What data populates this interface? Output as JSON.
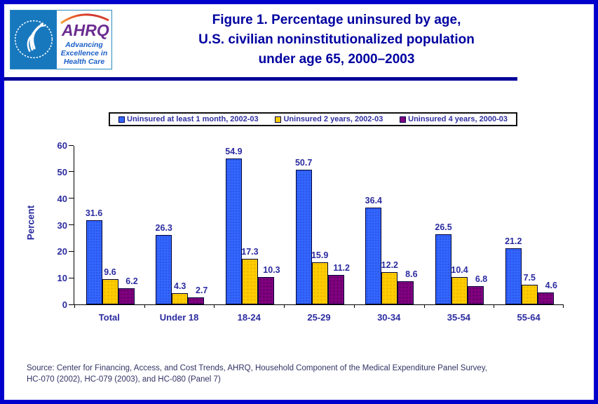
{
  "page": {
    "border_color": "#0000CC",
    "background": "#FFFFFF"
  },
  "header": {
    "logo": {
      "hhs_seal": "hhs-eagle-seal",
      "ahrq_text": "AHRQ",
      "tagline_lines": [
        "Advancing",
        "Excellence in",
        "Health Care"
      ],
      "ahrq_color": "#6B2C91",
      "tagline_color": "#1A5FC8",
      "seal_background": "#1878BE"
    },
    "title_lines": [
      "Figure 1. Percentage uninsured by age,",
      "U.S. civilian noninstitutionalized population",
      "under age 65, 2000–2003"
    ],
    "title_color": "#0000A0"
  },
  "chart_data": {
    "type": "bar",
    "title": "Figure 1. Percentage uninsured by age, U.S. civilian noninstitutionalized population under age 65, 2000–2003",
    "categories": [
      "Total",
      "Under 18",
      "18-24",
      "25-29",
      "30-34",
      "35-54",
      "55-64"
    ],
    "series": [
      {
        "name": "Uninsured at least 1 month, 2002-03",
        "color": "#3366FF",
        "values": [
          31.6,
          26.3,
          54.9,
          50.7,
          36.4,
          26.5,
          21.2
        ]
      },
      {
        "name": "Uninsured 2 years, 2002-03",
        "color": "#FFCC00",
        "values": [
          9.6,
          4.3,
          17.3,
          15.9,
          12.2,
          10.4,
          7.5
        ]
      },
      {
        "name": "Uninsured 4 years, 2000-03",
        "color": "#800080",
        "values": [
          6.2,
          2.7,
          10.3,
          11.2,
          8.6,
          6.8,
          4.6
        ]
      }
    ],
    "xlabel": "",
    "ylabel": "Percent",
    "ylim": [
      0,
      60
    ],
    "ytick_step": 10,
    "grid": false,
    "legend_position": "top",
    "value_labels": true
  },
  "footer": {
    "source_lines": [
      "Source: Center for Financing, Access, and Cost Trends, AHRQ, Household Component of the Medical Expenditure Panel Survey,",
      "HC-070 (2002), HC-079 (2003), and HC-080 (Panel 7)"
    ]
  }
}
